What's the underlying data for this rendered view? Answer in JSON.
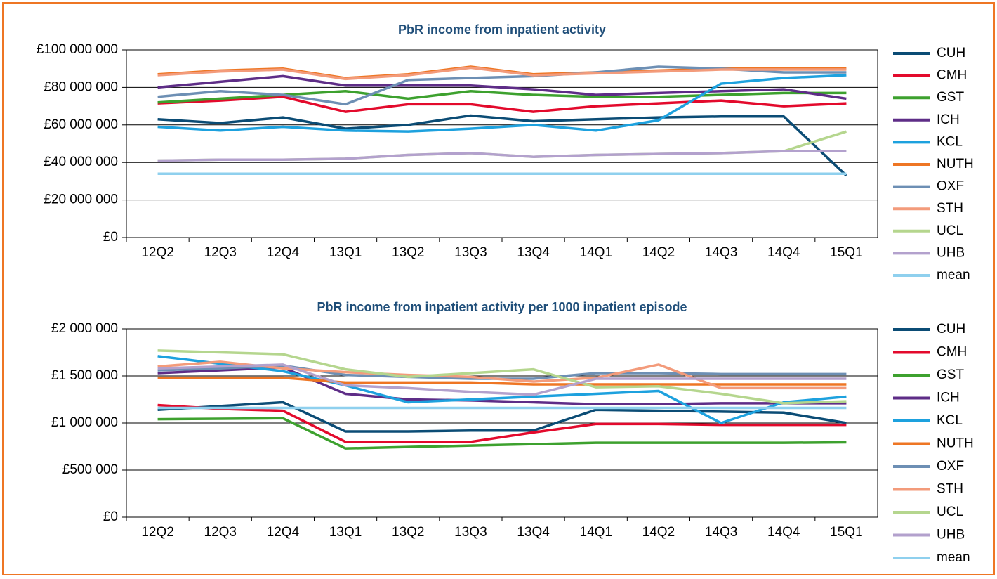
{
  "chart_data": [
    {
      "type": "line",
      "title": "PbR income from inpatient activity",
      "grid": true,
      "legend": "right",
      "categories": [
        "12Q2",
        "12Q3",
        "12Q4",
        "13Q1",
        "13Q2",
        "13Q3",
        "13Q4",
        "14Q1",
        "14Q2",
        "14Q3",
        "14Q4",
        "15Q1"
      ],
      "ylim": [
        0,
        100000000
      ],
      "yticks": [
        {
          "value": 0,
          "label": "£0"
        },
        {
          "value": 20000000,
          "label": "£20 000 000"
        },
        {
          "value": 40000000,
          "label": "£40 000 000"
        },
        {
          "value": 60000000,
          "label": "£60 000 000"
        },
        {
          "value": 80000000,
          "label": "£80 000 000"
        },
        {
          "value": 100000000,
          "label": "£100 000 000"
        }
      ],
      "series": [
        {
          "name": "CUH",
          "color": "#0b4c75",
          "values": [
            63000000,
            61000000,
            64000000,
            58000000,
            60000000,
            65000000,
            62000000,
            63000000,
            64000000,
            64500000,
            64500000,
            33000000
          ]
        },
        {
          "name": "CMH",
          "color": "#e30a2c",
          "values": [
            71500000,
            73000000,
            75000000,
            67000000,
            71000000,
            71000000,
            67000000,
            70000000,
            71500000,
            73000000,
            70000000,
            71500000
          ]
        },
        {
          "name": "GST",
          "color": "#3da12e",
          "values": [
            72000000,
            74000000,
            76000000,
            78000000,
            74000000,
            78000000,
            76000000,
            75000000,
            75000000,
            76000000,
            77000000,
            77000000
          ]
        },
        {
          "name": "ICH",
          "color": "#5e2d87",
          "values": [
            80000000,
            83000000,
            86000000,
            81000000,
            81000000,
            81000000,
            79000000,
            76000000,
            77000000,
            78000000,
            79000000,
            74000000
          ]
        },
        {
          "name": "KCL",
          "color": "#1da1de",
          "values": [
            59000000,
            57000000,
            59000000,
            57000000,
            56500000,
            58000000,
            60000000,
            57000000,
            62500000,
            82000000,
            85000000,
            86500000
          ]
        },
        {
          "name": "NUTH",
          "color": "#ee7624",
          "values": [
            87000000,
            89000000,
            90000000,
            85000000,
            87000000,
            91000000,
            87000000,
            88000000,
            89000000,
            90000000,
            90000000,
            90000000
          ]
        },
        {
          "name": "OXF",
          "color": "#6d8fb4",
          "values": [
            75000000,
            78000000,
            76000000,
            71000000,
            84000000,
            85000000,
            86000000,
            88000000,
            91000000,
            90000000,
            88000000,
            88000000
          ]
        },
        {
          "name": "STH",
          "color": "#f39b7b",
          "values": [
            86500000,
            88500000,
            89500000,
            84500000,
            86500000,
            90500000,
            86500000,
            87500000,
            88500000,
            89500000,
            89500000,
            89500000
          ]
        },
        {
          "name": "UCL",
          "color": "#b5d68e",
          "values": [
            41000000,
            41500000,
            41500000,
            42000000,
            44000000,
            45000000,
            43000000,
            44000000,
            44500000,
            45000000,
            46000000,
            56500000
          ]
        },
        {
          "name": "UHB",
          "color": "#b3a1cd",
          "values": [
            41000000,
            41500000,
            41500000,
            42000000,
            44000000,
            45000000,
            43000000,
            44000000,
            44500000,
            45000000,
            46000000,
            46000000
          ]
        },
        {
          "name": "mean",
          "color": "#8fd0ee",
          "values": [
            34000000,
            34000000,
            34000000,
            34000000,
            34000000,
            34000000,
            34000000,
            34000000,
            34000000,
            34000000,
            34000000,
            34000000
          ]
        }
      ]
    },
    {
      "type": "line",
      "title": "PbR income from inpatient activity per 1000 inpatient episode",
      "grid": true,
      "legend": "right",
      "categories": [
        "12Q2",
        "12Q3",
        "12Q4",
        "13Q1",
        "13Q2",
        "13Q3",
        "13Q4",
        "14Q1",
        "14Q2",
        "14Q3",
        "14Q4",
        "15Q1"
      ],
      "ylim": [
        0,
        2000000
      ],
      "yticks": [
        {
          "value": 0,
          "label": "£0"
        },
        {
          "value": 500000,
          "label": "£500 000"
        },
        {
          "value": 1000000,
          "label": "£1 000 000"
        },
        {
          "value": 1500000,
          "label": "£1 500 000"
        },
        {
          "value": 2000000,
          "label": "£2 000 000"
        }
      ],
      "series": [
        {
          "name": "CUH",
          "color": "#0b4c75",
          "values": [
            1140000,
            1180000,
            1220000,
            910000,
            910000,
            920000,
            920000,
            1140000,
            1130000,
            1120000,
            1110000,
            1000000
          ]
        },
        {
          "name": "CMH",
          "color": "#e30a2c",
          "values": [
            1190000,
            1150000,
            1130000,
            800000,
            800000,
            800000,
            900000,
            990000,
            990000,
            980000,
            980000,
            980000
          ]
        },
        {
          "name": "GST",
          "color": "#3da12e",
          "values": [
            1040000,
            1045000,
            1050000,
            730000,
            745000,
            760000,
            775000,
            790000,
            790000,
            790000,
            790000,
            795000
          ]
        },
        {
          "name": "ICH",
          "color": "#5e2d87",
          "values": [
            1530000,
            1560000,
            1590000,
            1310000,
            1250000,
            1240000,
            1220000,
            1200000,
            1200000,
            1210000,
            1210000,
            1210000
          ]
        },
        {
          "name": "KCL",
          "color": "#1da1de",
          "values": [
            1710000,
            1630000,
            1550000,
            1400000,
            1220000,
            1250000,
            1280000,
            1310000,
            1340000,
            1000000,
            1220000,
            1280000
          ]
        },
        {
          "name": "NUTH",
          "color": "#ee7624",
          "values": [
            1480000,
            1480000,
            1480000,
            1430000,
            1430000,
            1430000,
            1410000,
            1410000,
            1410000,
            1410000,
            1410000,
            1410000
          ]
        },
        {
          "name": "OXF",
          "color": "#6d8fb4",
          "values": [
            1560000,
            1580000,
            1610000,
            1510000,
            1490000,
            1470000,
            1470000,
            1530000,
            1530000,
            1520000,
            1520000,
            1520000
          ]
        },
        {
          "name": "STH",
          "color": "#f39b7b",
          "values": [
            1600000,
            1650000,
            1580000,
            1540000,
            1510000,
            1490000,
            1440000,
            1480000,
            1620000,
            1370000,
            1370000,
            1370000
          ]
        },
        {
          "name": "UCL",
          "color": "#b5d68e",
          "values": [
            1770000,
            1750000,
            1730000,
            1570000,
            1490000,
            1530000,
            1570000,
            1380000,
            1390000,
            1310000,
            1210000,
            1230000
          ]
        },
        {
          "name": "UHB",
          "color": "#b3a1cd",
          "values": [
            1580000,
            1600000,
            1620000,
            1400000,
            1370000,
            1330000,
            1300000,
            1470000,
            1470000,
            1470000,
            1470000,
            1470000
          ]
        },
        {
          "name": "mean",
          "color": "#8fd0ee",
          "values": [
            1160000,
            1160000,
            1160000,
            1160000,
            1160000,
            1160000,
            1160000,
            1160000,
            1160000,
            1160000,
            1160000,
            1160000
          ]
        }
      ]
    }
  ]
}
